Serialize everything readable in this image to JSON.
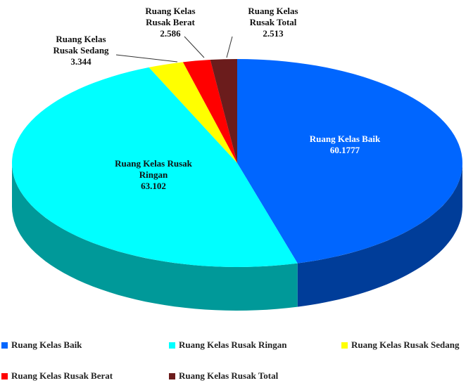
{
  "chart_data": {
    "type": "pie",
    "categories": [
      "Ruang Kelas Baik",
      "Ruang Kelas Rusak Ringan",
      "Ruang Kelas Rusak Sedang",
      "Ruang Kelas Rusak Berat",
      "Ruang Kelas Rusak Total"
    ],
    "values": [
      60.1777,
      63.102,
      3.344,
      2.586,
      2.513
    ],
    "colors": [
      "#0066ff",
      "#00ffff",
      "#ffff00",
      "#ff0000",
      "#6b1c1c"
    ],
    "legend": "bottom"
  }
}
